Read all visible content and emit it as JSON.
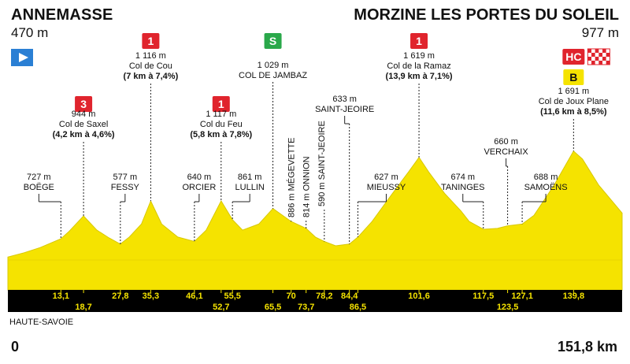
{
  "header": {
    "start_town": "ANNEMASSE",
    "start_altitude": "470 m",
    "finish_town": "MORZINE LES PORTES DU SOLEIL",
    "finish_altitude": "977 m",
    "region": "HAUTE-SAVOIE",
    "distance_start": "0",
    "distance_total": "151,8 km"
  },
  "colors": {
    "profile_fill": "#f5e300",
    "profile_edge": "#d8c800",
    "axis_bar": "#000000",
    "axis_text": "#f5e300",
    "climb_badge": "#e0242d",
    "sprint_badge": "#2aa84a",
    "start_flag": "#2a7fd4",
    "bonus_badge": "#f5e300"
  },
  "chart_data": {
    "type": "area",
    "xlim": [
      0,
      151.8
    ],
    "ylim": [
      300,
      2200
    ],
    "profile_km": [
      0,
      4,
      8,
      13.1,
      15,
      18.7,
      22,
      25,
      27.8,
      30,
      33,
      35.3,
      38,
      42,
      46.1,
      49,
      52.7,
      55.5,
      58,
      62,
      65.5,
      70,
      73.7,
      76,
      78.2,
      81,
      84.4,
      86.5,
      90,
      95,
      99,
      101.6,
      104,
      108,
      112,
      114,
      117.5,
      121,
      123.5,
      127.1,
      130,
      135,
      139.8,
      142,
      146,
      151.8
    ],
    "profile_alt": [
      470,
      520,
      580,
      680,
      760,
      944,
      780,
      690,
      620,
      700,
      850,
      1116,
      850,
      700,
      650,
      780,
      1117,
      900,
      780,
      850,
      1029,
      880,
      800,
      700,
      650,
      600,
      620,
      700,
      880,
      1200,
      1450,
      1619,
      1450,
      1200,
      1000,
      880,
      790,
      800,
      830,
      850,
      950,
      1300,
      1691,
      1600,
      1300,
      977
    ],
    "axis_ticks": [
      {
        "km": 13.1,
        "label": "13,1",
        "row": 1
      },
      {
        "km": 18.7,
        "label": "18,7",
        "row": 2
      },
      {
        "km": 27.8,
        "label": "27,8",
        "row": 1
      },
      {
        "km": 35.3,
        "label": "35,3",
        "row": 1
      },
      {
        "km": 46.1,
        "label": "46,1",
        "row": 1
      },
      {
        "km": 52.7,
        "label": "52,7",
        "row": 2
      },
      {
        "km": 55.5,
        "label": "55,5",
        "row": 1
      },
      {
        "km": 65.5,
        "label": "65,5",
        "row": 2
      },
      {
        "km": 70,
        "label": "70",
        "row": 1
      },
      {
        "km": 73.7,
        "label": "73,7",
        "row": 2
      },
      {
        "km": 78.2,
        "label": "78,2",
        "row": 1
      },
      {
        "km": 84.4,
        "label": "84,4",
        "row": 1
      },
      {
        "km": 86.5,
        "label": "86,5",
        "row": 2
      },
      {
        "km": 101.6,
        "label": "101,6",
        "row": 1
      },
      {
        "km": 117.5,
        "label": "117,5",
        "row": 1
      },
      {
        "km": 123.5,
        "label": "123,5",
        "row": 2
      },
      {
        "km": 127.1,
        "label": "127,1",
        "row": 1
      },
      {
        "km": 139.8,
        "label": "139,8",
        "row": 1
      }
    ],
    "climbs": [
      {
        "km": 18.7,
        "badge": "3",
        "altitude": "944 m",
        "name": "Col de Saxel",
        "detail": "(4,2 km à 4,6%)"
      },
      {
        "km": 35.3,
        "badge": "1",
        "altitude": "1 116 m",
        "name": "Col de Cou",
        "detail": "(7 km à 7,4%)"
      },
      {
        "km": 52.7,
        "badge": "1",
        "altitude": "1 117 m",
        "name": "Col du Feu",
        "detail": "(5,8 km à 7,8%)"
      },
      {
        "km": 101.6,
        "badge": "1",
        "altitude": "1 619 m",
        "name": "Col de la Ramaz",
        "detail": "(13,9 km à 7,1%)"
      },
      {
        "km": 139.8,
        "badge": "HC",
        "altitude": "1 691 m",
        "name": "Col de Joux Plane",
        "detail": "(11,6 km à 8,5%)"
      }
    ],
    "sprint": {
      "km": 65.5,
      "badge": "S",
      "altitude": "1 029 m",
      "name": "COL DE JAMBAZ"
    },
    "bonus_badge": "B",
    "towns": [
      {
        "km": 13.1,
        "altitude": "727 m",
        "name": "BOËGE"
      },
      {
        "km": 27.8,
        "altitude": "577 m",
        "name": "FESSY"
      },
      {
        "km": 46.1,
        "altitude": "640 m",
        "name": "ORCIER"
      },
      {
        "km": 55.5,
        "altitude": "861 m",
        "name": "LULLIN"
      },
      {
        "km": 84.4,
        "altitude": "633 m",
        "name": "SAINT-JEOIRE"
      },
      {
        "km": 86.5,
        "altitude": "627 m",
        "name": "MIEUSSY"
      },
      {
        "km": 117.5,
        "altitude": "674 m",
        "name": "TANINGES"
      },
      {
        "km": 123.5,
        "altitude": "660 m",
        "name": "VERCHAIX"
      },
      {
        "km": 127.1,
        "altitude": "688 m",
        "name": "SAMOËNS"
      }
    ],
    "vertical_labels": [
      {
        "km": 70,
        "text": "886 m MÉGEVETTE"
      },
      {
        "km": 73.7,
        "text": "814 m ONNION"
      },
      {
        "km": 78.2,
        "text": "590 m SAINT-JEOIRE"
      }
    ]
  }
}
